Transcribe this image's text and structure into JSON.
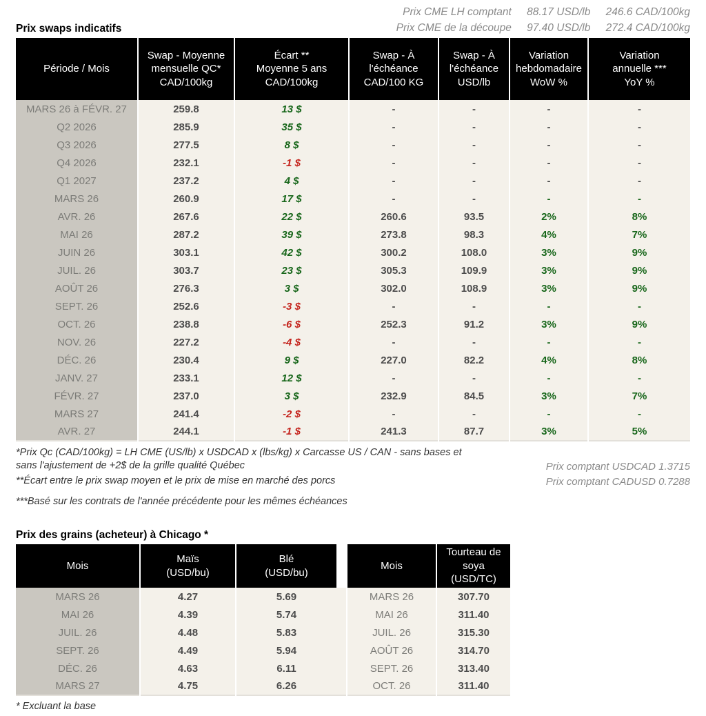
{
  "colors": {
    "positive_green": "#17661a",
    "negative_red": "#c4231c",
    "header_bg": "#000000",
    "label_column_bg": "#cac7c0",
    "body_bg": "#f4f1ea",
    "muted_text": "#8a8a8a"
  },
  "header": {
    "cme_lh": {
      "label": "Prix CME LH comptant",
      "usd": "88.17 USD/lb",
      "cad": "246.6 CAD/100kg"
    },
    "cme_cutout": {
      "label": "Prix CME de la découpe",
      "usd": "97.40 USD/lb",
      "cad": "272.4 CAD/100kg"
    },
    "swaps_title": "Prix swaps indicatifs"
  },
  "swaps_table": {
    "headers": [
      "Période / Mois",
      "Swap - Moyenne\nmensuelle QC*\nCAD/100kg",
      "Écart **\nMoyenne 5 ans\nCAD/100kg",
      "Swap - À\nl'échéance\nCAD/100 KG",
      "Swap - À\nl'échéance\nUSD/lb",
      "Variation\nhebdomadaire\nWoW %",
      "Variation\nannuelle ***\nYoY %"
    ],
    "rows": [
      {
        "period": "MARS 26 à  FÉVR. 27",
        "swap_avg": "259.8",
        "ecart": "13 $",
        "maturity_cad": "-",
        "maturity_usd": "-",
        "wow": "-",
        "yoy": "-",
        "variation_style": "muted"
      },
      {
        "period": "Q2 2026",
        "swap_avg": "285.9",
        "ecart": "35 $",
        "maturity_cad": "-",
        "maturity_usd": "-",
        "wow": "-",
        "yoy": "-",
        "variation_style": "muted"
      },
      {
        "period": "Q3 2026",
        "swap_avg": "277.5",
        "ecart": "8 $",
        "maturity_cad": "-",
        "maturity_usd": "-",
        "wow": "-",
        "yoy": "-",
        "variation_style": "muted"
      },
      {
        "period": "Q4 2026",
        "swap_avg": "232.1",
        "ecart": "-1 $",
        "maturity_cad": "-",
        "maturity_usd": "-",
        "wow": "-",
        "yoy": "-",
        "variation_style": "muted"
      },
      {
        "period": "Q1 2027",
        "swap_avg": "237.2",
        "ecart": "4 $",
        "maturity_cad": "-",
        "maturity_usd": "-",
        "wow": "-",
        "yoy": "-",
        "variation_style": "muted"
      },
      {
        "period": "MARS 26",
        "swap_avg": "260.9",
        "ecart": "17 $",
        "maturity_cad": "-",
        "maturity_usd": "-",
        "wow": "-",
        "yoy": "-",
        "variation_style": "green"
      },
      {
        "period": "AVR. 26",
        "swap_avg": "267.6",
        "ecart": "22 $",
        "maturity_cad": "260.6",
        "maturity_usd": "93.5",
        "wow": "2%",
        "yoy": "8%",
        "variation_style": "green"
      },
      {
        "period": "MAI 26",
        "swap_avg": "287.2",
        "ecart": "39 $",
        "maturity_cad": "273.8",
        "maturity_usd": "98.3",
        "wow": "4%",
        "yoy": "7%",
        "variation_style": "green"
      },
      {
        "period": "JUIN 26",
        "swap_avg": "303.1",
        "ecart": "42 $",
        "maturity_cad": "300.2",
        "maturity_usd": "108.0",
        "wow": "3%",
        "yoy": "9%",
        "variation_style": "green"
      },
      {
        "period": "JUIL. 26",
        "swap_avg": "303.7",
        "ecart": "23 $",
        "maturity_cad": "305.3",
        "maturity_usd": "109.9",
        "wow": "3%",
        "yoy": "9%",
        "variation_style": "green"
      },
      {
        "period": "AOÛT 26",
        "swap_avg": "276.3",
        "ecart": "3 $",
        "maturity_cad": "302.0",
        "maturity_usd": "108.9",
        "wow": "3%",
        "yoy": "9%",
        "variation_style": "green"
      },
      {
        "period": "SEPT. 26",
        "swap_avg": "252.6",
        "ecart": "-3 $",
        "maturity_cad": "-",
        "maturity_usd": "-",
        "wow": "-",
        "yoy": "-",
        "variation_style": "green"
      },
      {
        "period": "OCT. 26",
        "swap_avg": "238.8",
        "ecart": "-6 $",
        "maturity_cad": "252.3",
        "maturity_usd": "91.2",
        "wow": "3%",
        "yoy": "9%",
        "variation_style": "green"
      },
      {
        "period": "NOV. 26",
        "swap_avg": "227.2",
        "ecart": "-4 $",
        "maturity_cad": "-",
        "maturity_usd": "-",
        "wow": "-",
        "yoy": "-",
        "variation_style": "green"
      },
      {
        "period": "DÉC. 26",
        "swap_avg": "230.4",
        "ecart": "9 $",
        "maturity_cad": "227.0",
        "maturity_usd": "82.2",
        "wow": "4%",
        "yoy": "8%",
        "variation_style": "green"
      },
      {
        "period": "JANV. 27",
        "swap_avg": "233.1",
        "ecart": "12 $",
        "maturity_cad": "-",
        "maturity_usd": "-",
        "wow": "-",
        "yoy": "-",
        "variation_style": "green"
      },
      {
        "period": "FÉVR. 27",
        "swap_avg": "237.0",
        "ecart": "3 $",
        "maturity_cad": "232.9",
        "maturity_usd": "84.5",
        "wow": "3%",
        "yoy": "7%",
        "variation_style": "green"
      },
      {
        "period": "MARS 27",
        "swap_avg": "241.4",
        "ecart": "-2 $",
        "maturity_cad": "-",
        "maturity_usd": "-",
        "wow": "-",
        "yoy": "-",
        "variation_style": "green"
      },
      {
        "period": "AVR. 27",
        "swap_avg": "244.1",
        "ecart": "-1 $",
        "maturity_cad": "241.3",
        "maturity_usd": "87.7",
        "wow": "3%",
        "yoy": "5%",
        "variation_style": "green"
      }
    ]
  },
  "footnotes": {
    "fn1": "*Prix Qc (CAD/100kg) = LH CME (US/lb) x USDCAD x (lbs/kg) x Carcasse US / CAN - sans bases et\nsans l'ajustement de +2$ de la grille qualité Québec",
    "usdcad": "Prix comptant USDCAD 1.3715",
    "fn2": "**Écart entre le prix swap moyen et le prix de mise en marché des porcs",
    "cadusd": "Prix comptant CADUSD 0.7288",
    "fn3": "***Basé sur les contrats de l'année précédente pour les mêmes échéances"
  },
  "grains": {
    "title": "Prix des grains (acheteur) à Chicago *",
    "headers": [
      "Mois",
      "Maïs\n(USD/bu)",
      "Blé\n(USD/bu)",
      "Mois",
      "Tourteau de\nsoya\n(USD/TC)"
    ],
    "rows": [
      {
        "month_corn": "MARS 26",
        "corn": "4.27",
        "wheat": "5.69",
        "month_soy": "MARS 26",
        "soy": "307.70"
      },
      {
        "month_corn": "MAI 26",
        "corn": "4.39",
        "wheat": "5.74",
        "month_soy": "MAI 26",
        "soy": "311.40"
      },
      {
        "month_corn": "JUIL. 26",
        "corn": "4.48",
        "wheat": "5.83",
        "month_soy": "JUIL. 26",
        "soy": "315.30"
      },
      {
        "month_corn": "SEPT. 26",
        "corn": "4.49",
        "wheat": "5.94",
        "month_soy": "AOÛT 26",
        "soy": "314.70"
      },
      {
        "month_corn": "DÉC. 26",
        "corn": "4.63",
        "wheat": "6.11",
        "month_soy": "SEPT. 26",
        "soy": "313.40"
      },
      {
        "month_corn": "MARS 27",
        "corn": "4.75",
        "wheat": "6.26",
        "month_soy": "OCT. 26",
        "soy": "311.40"
      }
    ],
    "footnote": "* Excluant la base"
  }
}
